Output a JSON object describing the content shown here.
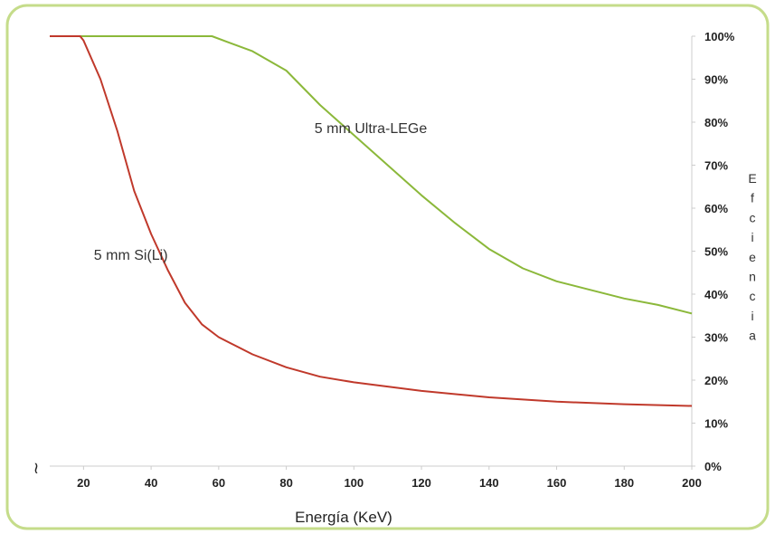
{
  "chart_data": {
    "type": "line",
    "xlabel": "Energía (KeV)",
    "ylabel": "Efciencia",
    "xlim": [
      10,
      200
    ],
    "ylim": [
      0,
      100
    ],
    "x_ticks": [
      20,
      40,
      60,
      80,
      100,
      120,
      140,
      160,
      180,
      200
    ],
    "y_ticks": [
      "0%",
      "10%",
      "20%",
      "30%",
      "40%",
      "50%",
      "60%",
      "70%",
      "80%",
      "90%",
      "100%"
    ],
    "y_axis_side": "right",
    "grid": false,
    "series": [
      {
        "name": "5 mm Ultra-LEGe",
        "color": "#8bb83a",
        "points": [
          [
            10,
            100
          ],
          [
            55,
            100
          ],
          [
            58,
            100
          ],
          [
            70,
            96.5
          ],
          [
            80,
            92
          ],
          [
            90,
            84
          ],
          [
            100,
            77
          ],
          [
            110,
            70
          ],
          [
            120,
            63
          ],
          [
            130,
            56.5
          ],
          [
            140,
            50.5
          ],
          [
            150,
            46
          ],
          [
            160,
            43
          ],
          [
            170,
            41
          ],
          [
            180,
            39
          ],
          [
            190,
            37.5
          ],
          [
            200,
            35.5
          ]
        ]
      },
      {
        "name": "5 mm Si(Li)",
        "color": "#c0392b",
        "points": [
          [
            10,
            100
          ],
          [
            19,
            100
          ],
          [
            20,
            99
          ],
          [
            25,
            90
          ],
          [
            30,
            78
          ],
          [
            35,
            64
          ],
          [
            40,
            54
          ],
          [
            45,
            45.5
          ],
          [
            50,
            38
          ],
          [
            55,
            33
          ],
          [
            60,
            30
          ],
          [
            70,
            26
          ],
          [
            80,
            23
          ],
          [
            90,
            20.8
          ],
          [
            100,
            19.5
          ],
          [
            120,
            17.5
          ],
          [
            140,
            16
          ],
          [
            160,
            15
          ],
          [
            180,
            14.4
          ],
          [
            200,
            14
          ]
        ]
      }
    ],
    "annotations": [
      {
        "text": "5 mm Ultra-LEGe",
        "x": 105,
        "y": 77.5
      },
      {
        "text": "5 mm Si(Li)",
        "x": 34,
        "y": 48
      }
    ]
  },
  "decor": {
    "frame_color": "#c5dc8a",
    "axis_color": "#cccccc",
    "axis_break_glyph": "≀"
  }
}
